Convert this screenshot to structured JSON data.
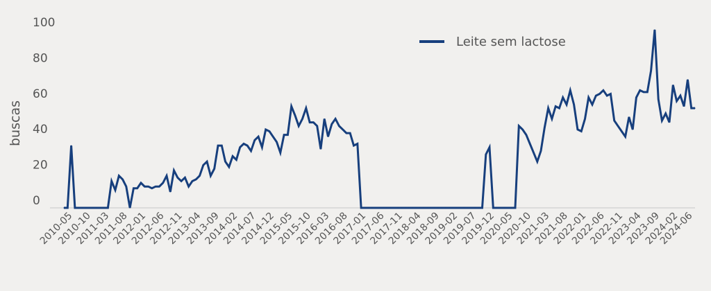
{
  "chart_data": {
    "type": "line",
    "ylabel": "buscas",
    "xlabel": "",
    "ylim": [
      0,
      100
    ],
    "yticks": [
      0,
      20,
      40,
      60,
      80,
      100
    ],
    "grid": false,
    "legend_position": "top-right",
    "series": [
      {
        "name": "Leite sem lactose",
        "color": "#173f7d",
        "points": [
          {
            "x": "2010-03",
            "y": 0
          },
          {
            "x": "2010-04",
            "y": 0
          },
          {
            "x": "2010-05",
            "y": 35
          },
          {
            "x": "2010-06",
            "y": 0
          },
          {
            "x": "2010-07",
            "y": 0
          },
          {
            "x": "2010-08",
            "y": 0
          },
          {
            "x": "2010-09",
            "y": 0
          },
          {
            "x": "2010-10",
            "y": 0
          },
          {
            "x": "2010-11",
            "y": 0
          },
          {
            "x": "2010-12",
            "y": 0
          },
          {
            "x": "2011-01",
            "y": 0
          },
          {
            "x": "2011-02",
            "y": 0
          },
          {
            "x": "2011-03",
            "y": 0
          },
          {
            "x": "2011-04",
            "y": 15
          },
          {
            "x": "2011-05",
            "y": 10
          },
          {
            "x": "2011-06",
            "y": 18
          },
          {
            "x": "2011-07",
            "y": 16
          },
          {
            "x": "2011-08",
            "y": 12
          },
          {
            "x": "2011-09",
            "y": 0
          },
          {
            "x": "2011-10",
            "y": 11
          },
          {
            "x": "2011-11",
            "y": 11
          },
          {
            "x": "2011-12",
            "y": 14
          },
          {
            "x": "2012-01",
            "y": 12
          },
          {
            "x": "2012-02",
            "y": 12
          },
          {
            "x": "2012-03",
            "y": 11
          },
          {
            "x": "2012-04",
            "y": 12
          },
          {
            "x": "2012-05",
            "y": 12
          },
          {
            "x": "2012-06",
            "y": 14
          },
          {
            "x": "2012-07",
            "y": 18
          },
          {
            "x": "2012-08",
            "y": 9
          },
          {
            "x": "2012-09",
            "y": 21
          },
          {
            "x": "2012-10",
            "y": 17
          },
          {
            "x": "2012-11",
            "y": 15
          },
          {
            "x": "2012-12",
            "y": 17
          },
          {
            "x": "2013-01",
            "y": 12
          },
          {
            "x": "2013-02",
            "y": 15
          },
          {
            "x": "2013-03",
            "y": 16
          },
          {
            "x": "2013-04",
            "y": 18
          },
          {
            "x": "2013-05",
            "y": 24
          },
          {
            "x": "2013-06",
            "y": 26
          },
          {
            "x": "2013-07",
            "y": 18
          },
          {
            "x": "2013-08",
            "y": 22
          },
          {
            "x": "2013-09",
            "y": 35
          },
          {
            "x": "2013-10",
            "y": 35
          },
          {
            "x": "2013-11",
            "y": 26
          },
          {
            "x": "2013-12",
            "y": 23
          },
          {
            "x": "2014-01",
            "y": 29
          },
          {
            "x": "2014-02",
            "y": 27
          },
          {
            "x": "2014-03",
            "y": 34
          },
          {
            "x": "2014-04",
            "y": 36
          },
          {
            "x": "2014-05",
            "y": 35
          },
          {
            "x": "2014-06",
            "y": 32
          },
          {
            "x": "2014-07",
            "y": 38
          },
          {
            "x": "2014-08",
            "y": 40
          },
          {
            "x": "2014-09",
            "y": 34
          },
          {
            "x": "2014-10",
            "y": 44
          },
          {
            "x": "2014-11",
            "y": 43
          },
          {
            "x": "2014-12",
            "y": 40
          },
          {
            "x": "2015-01",
            "y": 37
          },
          {
            "x": "2015-02",
            "y": 31
          },
          {
            "x": "2015-03",
            "y": 41
          },
          {
            "x": "2015-04",
            "y": 41
          },
          {
            "x": "2015-05",
            "y": 57
          },
          {
            "x": "2015-06",
            "y": 52
          },
          {
            "x": "2015-07",
            "y": 46
          },
          {
            "x": "2015-08",
            "y": 50
          },
          {
            "x": "2015-09",
            "y": 56
          },
          {
            "x": "2015-10",
            "y": 48
          },
          {
            "x": "2015-11",
            "y": 48
          },
          {
            "x": "2015-12",
            "y": 46
          },
          {
            "x": "2016-01",
            "y": 33
          },
          {
            "x": "2016-02",
            "y": 50
          },
          {
            "x": "2016-03",
            "y": 40
          },
          {
            "x": "2016-04",
            "y": 47
          },
          {
            "x": "2016-05",
            "y": 50
          },
          {
            "x": "2016-06",
            "y": 46
          },
          {
            "x": "2016-07",
            "y": 44
          },
          {
            "x": "2016-08",
            "y": 42
          },
          {
            "x": "2016-09",
            "y": 42
          },
          {
            "x": "2016-10",
            "y": 35
          },
          {
            "x": "2016-11",
            "y": 36
          },
          {
            "x": "2016-12",
            "y": 0
          },
          {
            "x": "2017-01",
            "y": 0
          },
          {
            "x": "2017-02",
            "y": 0
          },
          {
            "x": "2017-03",
            "y": 0
          },
          {
            "x": "2017-04",
            "y": 0
          },
          {
            "x": "2017-05",
            "y": 0
          },
          {
            "x": "2017-06",
            "y": 0
          },
          {
            "x": "2017-07",
            "y": 0
          },
          {
            "x": "2017-08",
            "y": 0
          },
          {
            "x": "2017-09",
            "y": 0
          },
          {
            "x": "2017-10",
            "y": 0
          },
          {
            "x": "2017-11",
            "y": 0
          },
          {
            "x": "2017-12",
            "y": 0
          },
          {
            "x": "2018-01",
            "y": 0
          },
          {
            "x": "2018-02",
            "y": 0
          },
          {
            "x": "2018-03",
            "y": 0
          },
          {
            "x": "2018-04",
            "y": 0
          },
          {
            "x": "2018-05",
            "y": 0
          },
          {
            "x": "2018-06",
            "y": 0
          },
          {
            "x": "2018-07",
            "y": 0
          },
          {
            "x": "2018-08",
            "y": 0
          },
          {
            "x": "2018-09",
            "y": 0
          },
          {
            "x": "2018-10",
            "y": 0
          },
          {
            "x": "2018-11",
            "y": 0
          },
          {
            "x": "2018-12",
            "y": 0
          },
          {
            "x": "2019-01",
            "y": 0
          },
          {
            "x": "2019-02",
            "y": 0
          },
          {
            "x": "2019-03",
            "y": 0
          },
          {
            "x": "2019-04",
            "y": 0
          },
          {
            "x": "2019-05",
            "y": 0
          },
          {
            "x": "2019-06",
            "y": 0
          },
          {
            "x": "2019-07",
            "y": 0
          },
          {
            "x": "2019-08",
            "y": 0
          },
          {
            "x": "2019-09",
            "y": 0
          },
          {
            "x": "2019-10",
            "y": 30
          },
          {
            "x": "2019-11",
            "y": 34
          },
          {
            "x": "2019-12",
            "y": 0
          },
          {
            "x": "2020-01",
            "y": 0
          },
          {
            "x": "2020-02",
            "y": 0
          },
          {
            "x": "2020-03",
            "y": 0
          },
          {
            "x": "2020-04",
            "y": 0
          },
          {
            "x": "2020-05",
            "y": 0
          },
          {
            "x": "2020-06",
            "y": 0
          },
          {
            "x": "2020-07",
            "y": 46
          },
          {
            "x": "2020-08",
            "y": 44
          },
          {
            "x": "2020-09",
            "y": 41
          },
          {
            "x": "2020-10",
            "y": 36
          },
          {
            "x": "2020-11",
            "y": 31
          },
          {
            "x": "2020-12",
            "y": 26
          },
          {
            "x": "2021-01",
            "y": 32
          },
          {
            "x": "2021-02",
            "y": 45
          },
          {
            "x": "2021-03",
            "y": 56
          },
          {
            "x": "2021-04",
            "y": 50
          },
          {
            "x": "2021-05",
            "y": 57
          },
          {
            "x": "2021-06",
            "y": 56
          },
          {
            "x": "2021-07",
            "y": 62
          },
          {
            "x": "2021-08",
            "y": 58
          },
          {
            "x": "2021-09",
            "y": 66
          },
          {
            "x": "2021-10",
            "y": 58
          },
          {
            "x": "2021-11",
            "y": 44
          },
          {
            "x": "2021-12",
            "y": 43
          },
          {
            "x": "2022-01",
            "y": 50
          },
          {
            "x": "2022-02",
            "y": 62
          },
          {
            "x": "2022-03",
            "y": 58
          },
          {
            "x": "2022-04",
            "y": 63
          },
          {
            "x": "2022-05",
            "y": 64
          },
          {
            "x": "2022-06",
            "y": 66
          },
          {
            "x": "2022-07",
            "y": 63
          },
          {
            "x": "2022-08",
            "y": 64
          },
          {
            "x": "2022-09",
            "y": 49
          },
          {
            "x": "2022-10",
            "y": 46
          },
          {
            "x": "2022-11",
            "y": 43
          },
          {
            "x": "2022-12",
            "y": 40
          },
          {
            "x": "2023-01",
            "y": 51
          },
          {
            "x": "2023-02",
            "y": 44
          },
          {
            "x": "2023-03",
            "y": 62
          },
          {
            "x": "2023-04",
            "y": 66
          },
          {
            "x": "2023-05",
            "y": 65
          },
          {
            "x": "2023-06",
            "y": 65
          },
          {
            "x": "2023-07",
            "y": 77
          },
          {
            "x": "2023-08",
            "y": 100
          },
          {
            "x": "2023-09",
            "y": 61
          },
          {
            "x": "2023-10",
            "y": 49
          },
          {
            "x": "2023-11",
            "y": 53
          },
          {
            "x": "2023-12",
            "y": 48
          },
          {
            "x": "2024-01",
            "y": 69
          },
          {
            "x": "2024-02",
            "y": 60
          },
          {
            "x": "2024-03",
            "y": 63
          },
          {
            "x": "2024-04",
            "y": 57
          },
          {
            "x": "2024-05",
            "y": 72
          },
          {
            "x": "2024-06",
            "y": 56
          },
          {
            "x": "2024-07",
            "y": 56
          }
        ]
      }
    ],
    "x_tick_labels": [
      "2010-05",
      "2010-10",
      "2011-03",
      "2011-08",
      "2012-01",
      "2012-06",
      "2012-11",
      "2013-04",
      "2013-09",
      "2014-02",
      "2014-07",
      "2014-12",
      "2015-05",
      "2015-10",
      "2016-03",
      "2016-08",
      "2017-01",
      "2017-06",
      "2017-11",
      "2018-04",
      "2018-09",
      "2019-02",
      "2019-07",
      "2019-12",
      "2020-05",
      "2020-10",
      "2021-03",
      "2021-08",
      "2022-01",
      "2022-06",
      "2022-11",
      "2023-04",
      "2023-09",
      "2024-02",
      "2024-06"
    ]
  }
}
